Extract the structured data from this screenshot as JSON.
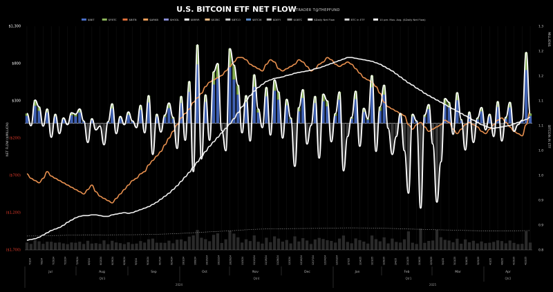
{
  "chart_data": {
    "type": "bar",
    "title": "U.S. BITCOIN ETF NET FLOW",
    "subtitle": "TRADER T@THEPFUND",
    "legend": [
      "$IBIT",
      "$FBTC",
      "$BITB",
      "$ARKB",
      "$HODL",
      "$BRRR",
      "$EZBC",
      "$BTCO",
      "$BTCW",
      "$DEFI",
      "$GBTC",
      "$Daily Net Flow",
      "BTC in ETF",
      "10 per. Mov. Avg. ($Daily Net Flow)"
    ],
    "legend_placement": "top",
    "ylabel_left": "NET FLOW ($MILLION)",
    "ylabel_right_upper": "BITCOIN IN ETF",
    "ylabel_right_lower": "MILLIONS",
    "left_ticks": [
      {
        "label": "$1,300",
        "value": 1300,
        "color": "#ffffff"
      },
      {
        "label": "$800",
        "value": 800,
        "color": "#ffffff"
      },
      {
        "label": "$300",
        "value": 300,
        "color": "#ffffff"
      },
      {
        "label": "($200)",
        "value": -200,
        "color": "#e03a2a"
      },
      {
        "label": "($700)",
        "value": -700,
        "color": "#e03a2a"
      },
      {
        "label": "($1,200)",
        "value": -1200,
        "color": "#e03a2a"
      },
      {
        "label": "($1,700)",
        "value": -1700,
        "color": "#e03a2a"
      }
    ],
    "right_ticks": [
      "1.3",
      "1.2",
      "1.2",
      "1.1",
      "1.1",
      "1.0",
      "1.0",
      "0.9",
      "0.9",
      "0.8"
    ],
    "months": [
      "Jul",
      "Aug",
      "Sep",
      "Oct",
      "Nov",
      "Dec",
      "Jan",
      "Feb",
      "Mar",
      "Apr"
    ],
    "quarters": [
      "Qtr3",
      "Qtr4",
      "Qtr1",
      "Qtr2"
    ],
    "years": [
      "2024",
      "2025"
    ],
    "date_ticks": [
      "7/1/24",
      "7/8/24",
      "7/15/24",
      "7/22/24",
      "7/29/24",
      "8/5/24",
      "8/12/24",
      "8/19/24",
      "8/26/24",
      "9/3/24",
      "9/10/24",
      "9/17/24",
      "9/24/24",
      "10/1/24",
      "10/8/24",
      "10/15/24",
      "10/22/24",
      "10/29/24",
      "11/5/24",
      "11/12/24",
      "11/19/24",
      "11/26/24",
      "12/3/24",
      "12/10/24",
      "12/17/24",
      "12/24/24",
      "12/31/24",
      "1/7/25",
      "1/14/25",
      "1/21/25",
      "1/28/25",
      "2/4/25",
      "2/11/25",
      "2/18/25",
      "2/25/25",
      "3/4/25",
      "3/11/25",
      "3/18/25",
      "3/25/25",
      "4/1/25",
      "4/8/25",
      "4/15/25",
      "4/22/25"
    ],
    "ylim": [
      -1700,
      1300
    ],
    "grid": false,
    "series": [
      {
        "name": "$Daily Net Flow",
        "color": "#ffffff",
        "values": [
          130,
          -35,
          310,
          220,
          -40,
          190,
          -190,
          120,
          -140,
          70,
          -20,
          140,
          120,
          190,
          30,
          -260,
          60,
          -90,
          -40,
          -290,
          20,
          260,
          -140,
          90,
          -20,
          150,
          30,
          -60,
          240,
          -130,
          370,
          -420,
          120,
          -120,
          110,
          270,
          80,
          -340,
          360,
          -230,
          560,
          -650,
          1050,
          -480,
          380,
          -230,
          690,
          800,
          -100,
          -370,
          1000,
          780,
          510,
          -130,
          370,
          -240,
          650,
          190,
          -60,
          480,
          -160,
          580,
          420,
          -200,
          320,
          70,
          -580,
          210,
          450,
          -280,
          -30,
          360,
          -470,
          390,
          300,
          -250,
          130,
          420,
          -640,
          -180,
          80,
          430,
          -310,
          200,
          60,
          640,
          -380,
          220,
          510,
          -70,
          -420,
          -180,
          130,
          -370,
          -940,
          120,
          30,
          -1140,
          110,
          250,
          -280,
          -1060,
          -520,
          330,
          280,
          -150,
          410,
          50,
          -360,
          150,
          -260,
          70,
          210,
          -90,
          120,
          -180,
          290,
          -240,
          80,
          280,
          -110,
          -20,
          40,
          950,
          130
        ]
      },
      {
        "name": "BTC in ETF",
        "color": "#e8904f",
        "values": [
          0.97,
          0.96,
          0.955,
          0.95,
          0.96,
          0.975,
          0.965,
          0.96,
          0.955,
          0.95,
          0.945,
          0.94,
          0.935,
          0.93,
          0.925,
          0.935,
          0.945,
          0.93,
          0.92,
          0.915,
          0.91,
          0.905,
          0.915,
          0.925,
          0.935,
          0.945,
          0.955,
          0.96,
          0.97,
          0.975,
          0.99,
          1.0,
          1.01,
          1.02,
          1.035,
          1.05,
          1.065,
          1.08,
          1.095,
          1.105,
          1.115,
          1.13,
          1.14,
          1.15,
          1.165,
          1.175,
          1.18,
          1.185,
          1.19,
          1.2,
          1.21,
          1.22,
          1.23,
          1.23,
          1.225,
          1.215,
          1.21,
          1.205,
          1.2,
          1.215,
          1.225,
          1.22,
          1.205,
          1.2,
          1.205,
          1.21,
          1.215,
          1.225,
          1.22,
          1.21,
          1.2,
          1.205,
          1.215,
          1.22,
          1.23,
          1.225,
          1.215,
          1.21,
          1.215,
          1.22,
          1.215,
          1.205,
          1.195,
          1.185,
          1.18,
          1.175,
          1.165,
          1.15,
          1.13,
          1.12,
          1.115,
          1.11,
          1.105,
          1.1,
          1.08,
          1.07,
          1.08,
          1.085,
          1.075,
          1.065,
          1.07,
          1.075,
          1.08,
          1.09,
          1.085,
          1.07,
          1.06,
          1.07,
          1.08,
          1.085,
          1.08,
          1.075,
          1.065,
          1.06,
          1.07,
          1.08,
          1.09,
          1.095,
          1.085,
          1.075,
          1.065,
          1.06,
          1.055,
          1.08,
          1.11
        ]
      },
      {
        "name": "10 per. Mov. Avg. ($Daily Net Flow)",
        "color": "#ffffff",
        "values": [
          -1570,
          -1560,
          -1550,
          -1530,
          -1500,
          -1470,
          -1440,
          -1420,
          -1400,
          -1370,
          -1330,
          -1300,
          -1270,
          -1250,
          -1240,
          -1240,
          -1230,
          -1230,
          -1240,
          -1250,
          -1250,
          -1230,
          -1220,
          -1210,
          -1200,
          -1210,
          -1200,
          -1180,
          -1160,
          -1140,
          -1120,
          -1090,
          -1060,
          -1020,
          -980,
          -940,
          -890,
          -840,
          -780,
          -720,
          -660,
          -590,
          -520,
          -450,
          -380,
          -310,
          -250,
          -190,
          -130,
          -70,
          -10,
          60,
          140,
          220,
          300,
          370,
          430,
          480,
          520,
          560,
          580,
          600,
          610,
          620,
          640,
          650,
          670,
          680,
          690,
          700,
          710,
          730,
          740,
          760,
          780,
          800,
          820,
          840,
          860,
          880,
          880,
          870,
          860,
          850,
          840,
          830,
          810,
          790,
          760,
          730,
          700,
          660,
          620,
          580,
          540,
          510,
          470,
          440,
          400,
          370,
          340,
          310,
          280,
          250,
          220,
          190,
          160,
          130,
          100,
          70,
          40,
          10,
          -20,
          -40,
          -60,
          -70,
          -60,
          -50,
          -40,
          -30,
          -10,
          10,
          30,
          50,
          80
        ]
      }
    ]
  }
}
